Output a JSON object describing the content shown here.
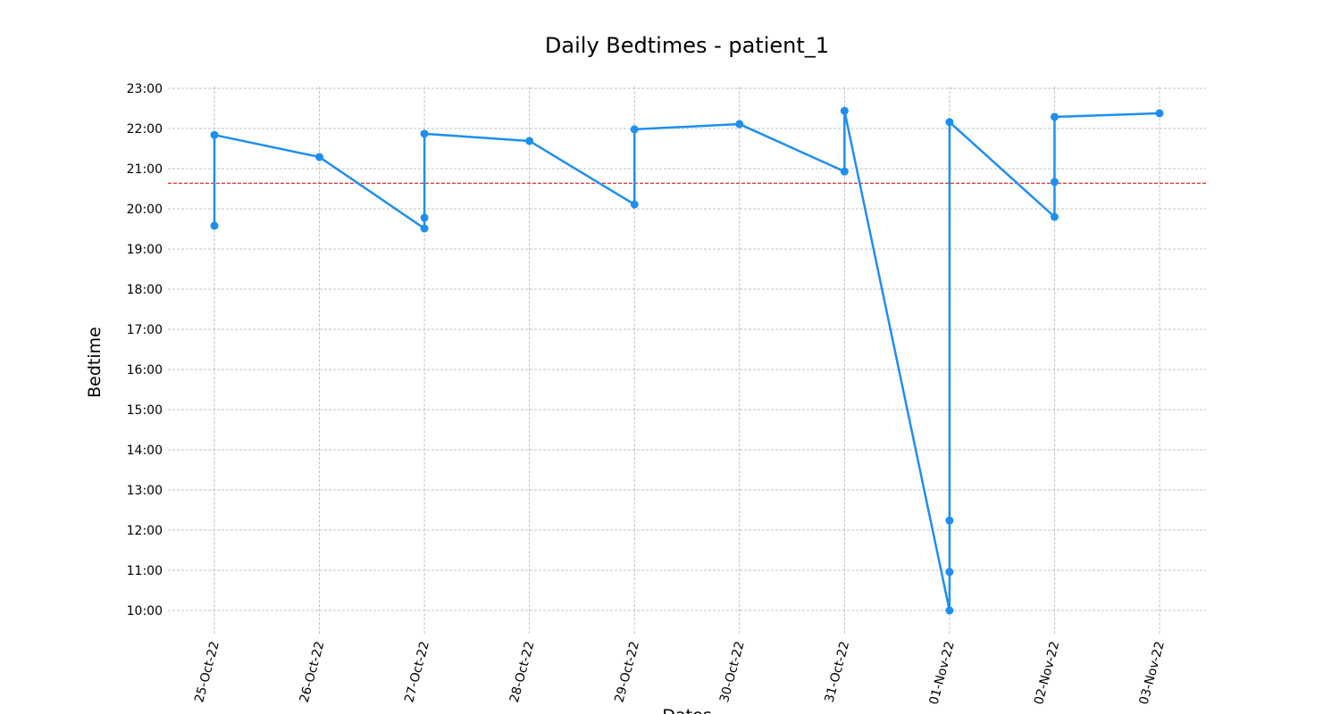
{
  "chart_data": {
    "type": "line",
    "title": "Daily Bedtimes - patient_1",
    "x_label": "Dates",
    "y_label": "Bedtime",
    "categories": [
      "25-Oct-22",
      "26-Oct-22",
      "27-Oct-22",
      "28-Oct-22",
      "29-Oct-22",
      "30-Oct-22",
      "31-Oct-22",
      "01-Nov-22",
      "02-Nov-22",
      "03-Nov-22"
    ],
    "series": [
      {
        "color": "#1e8ff0",
        "marker": true,
        "x": [
          "25-Oct-22",
          "25-Oct-22",
          "26-Oct-22",
          "27-Oct-22",
          "27-Oct-22",
          "27-Oct-22",
          "28-Oct-22",
          "29-Oct-22",
          "29-Oct-22",
          "30-Oct-22",
          "31-Oct-22",
          "31-Oct-22",
          "01-Nov-22",
          "01-Nov-22",
          "01-Nov-22",
          "01-Nov-22",
          "02-Nov-22",
          "02-Nov-22",
          "02-Nov-22",
          "03-Nov-22"
        ],
        "values": [
          19.58,
          21.84,
          21.29,
          19.51,
          19.78,
          21.87,
          21.69,
          20.11,
          21.98,
          22.11,
          20.93,
          22.44,
          10.0,
          10.96,
          12.24,
          22.16,
          19.8,
          20.67,
          22.29,
          22.38
        ]
      }
    ],
    "hline": {
      "value": 20.64,
      "color": "#cc0000"
    },
    "ylim": [
      9.42,
      23.04
    ],
    "yticks": [
      {
        "value": 10,
        "label": "10:00"
      },
      {
        "value": 11,
        "label": "11:00"
      },
      {
        "value": 12,
        "label": "12:00"
      },
      {
        "value": 13,
        "label": "13:00"
      },
      {
        "value": 14,
        "label": "14:00"
      },
      {
        "value": 15,
        "label": "15:00"
      },
      {
        "value": 16,
        "label": "16:00"
      },
      {
        "value": 17,
        "label": "17:00"
      },
      {
        "value": 18,
        "label": "18:00"
      },
      {
        "value": 19,
        "label": "19:00"
      },
      {
        "value": 20,
        "label": "20:00"
      },
      {
        "value": 21,
        "label": "21:00"
      },
      {
        "value": 22,
        "label": "22:00"
      },
      {
        "value": 23,
        "label": "23:00"
      }
    ],
    "grid": true
  }
}
